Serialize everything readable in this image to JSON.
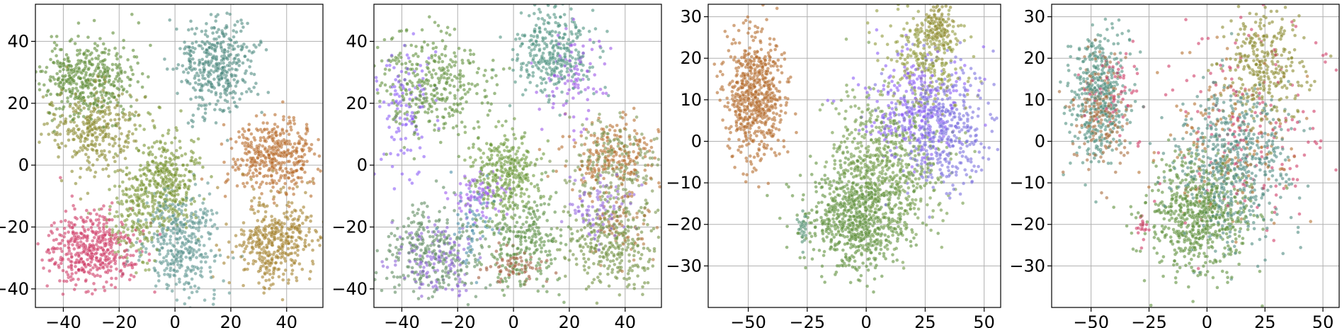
{
  "chart_data": [
    {
      "type": "scatter",
      "title": "",
      "xlabel": "",
      "ylabel": "",
      "xlim": [
        -50,
        53
      ],
      "ylim": [
        -46,
        52
      ],
      "xticks": [
        -40,
        -20,
        0,
        20,
        40
      ],
      "yticks": [
        -40,
        -20,
        0,
        20,
        40
      ],
      "x_tick_labels": [
        "−40",
        "−20",
        "0",
        "20",
        "40"
      ],
      "y_tick_labels": [
        "−40",
        "−20",
        "0",
        "20",
        "40"
      ],
      "grid": true,
      "legend": "none",
      "seed": 11,
      "clusters": [
        {
          "color": "#5b8b33",
          "x": -32,
          "y": 28,
          "sx": 8,
          "sy": 6,
          "n": 430
        },
        {
          "color": "#4e8a80",
          "x": 15,
          "y": 33,
          "sx": 7,
          "sy": 8,
          "n": 420
        },
        {
          "color": "#8a8a2e",
          "x": -30,
          "y": 12,
          "sx": 8,
          "sy": 7,
          "n": 330
        },
        {
          "color": "#b76a2a",
          "x": 36,
          "y": 3,
          "sx": 8,
          "sy": 6,
          "n": 420
        },
        {
          "color": "#77922e",
          "x": -4,
          "y": -5,
          "sx": 6,
          "sy": 8,
          "n": 380
        },
        {
          "color": "#cf3a66",
          "x": -30,
          "y": -27,
          "sx": 8,
          "sy": 6,
          "n": 460
        },
        {
          "color": "#5b9490",
          "x": 2,
          "y": -25,
          "sx": 7,
          "sy": 8,
          "n": 380
        },
        {
          "color": "#a4812c",
          "x": 36,
          "y": -25,
          "sx": 7,
          "sy": 7,
          "n": 420
        },
        {
          "color": "#7d9a3a",
          "x": -14,
          "y": -17,
          "sx": 5,
          "sy": 7,
          "n": 150
        }
      ]
    },
    {
      "type": "scatter",
      "title": "",
      "xlabel": "",
      "ylabel": "",
      "xlim": [
        -50,
        53
      ],
      "ylim": [
        -46,
        52
      ],
      "xticks": [
        -40,
        -20,
        0,
        20,
        40
      ],
      "yticks": [
        -40,
        -20,
        0,
        20,
        40
      ],
      "x_tick_labels": [
        "−40",
        "−20",
        "0",
        "20",
        "40"
      ],
      "y_tick_labels": [
        "−40",
        "−20",
        "0",
        "20",
        "40"
      ],
      "grid": true,
      "legend": "none",
      "seed": 23,
      "clusters": [
        {
          "color": "#5f8f3a",
          "x": -30,
          "y": 25,
          "sx": 10,
          "sy": 9,
          "n": 360
        },
        {
          "color": "#8b5cf6",
          "x": -40,
          "y": 20,
          "sx": 5,
          "sy": 10,
          "n": 120
        },
        {
          "color": "#4f9380",
          "x": 14,
          "y": 36,
          "sx": 7,
          "sy": 7,
          "n": 330
        },
        {
          "color": "#9b55e8",
          "x": 22,
          "y": 28,
          "sx": 6,
          "sy": 8,
          "n": 90
        },
        {
          "color": "#b86e2f",
          "x": 35,
          "y": 3,
          "sx": 9,
          "sy": 6,
          "n": 220
        },
        {
          "color": "#7a9450",
          "x": 36,
          "y": 0,
          "sx": 8,
          "sy": 7,
          "n": 220
        },
        {
          "color": "#6d9a3a",
          "x": -3,
          "y": -3,
          "sx": 6,
          "sy": 7,
          "n": 330
        },
        {
          "color": "#9b59ee",
          "x": -12,
          "y": -10,
          "sx": 5,
          "sy": 4,
          "n": 80
        },
        {
          "color": "#5e8a5f",
          "x": -30,
          "y": -28,
          "sx": 9,
          "sy": 7,
          "n": 300
        },
        {
          "color": "#8e63d8",
          "x": -28,
          "y": -30,
          "sx": 8,
          "sy": 6,
          "n": 140
        },
        {
          "color": "#5c8f45",
          "x": 4,
          "y": -25,
          "sx": 7,
          "sy": 8,
          "n": 260
        },
        {
          "color": "#a05a3a",
          "x": 0,
          "y": -33,
          "sx": 6,
          "sy": 3,
          "n": 70
        },
        {
          "color": "#6f8f3f",
          "x": 36,
          "y": -25,
          "sx": 8,
          "sy": 7,
          "n": 300
        },
        {
          "color": "#9567e0",
          "x": 30,
          "y": -15,
          "sx": 6,
          "sy": 6,
          "n": 90
        },
        {
          "color": "#b0753a",
          "x": 40,
          "y": -20,
          "sx": 6,
          "sy": 5,
          "n": 80
        },
        {
          "color": "#4b8faa",
          "x": -15,
          "y": -20,
          "sx": 4,
          "sy": 7,
          "n": 60
        }
      ]
    },
    {
      "type": "scatter",
      "title": "",
      "xlabel": "",
      "ylabel": "",
      "xlim": [
        -67,
        57
      ],
      "ylim": [
        -40,
        33
      ],
      "xticks": [
        -50,
        -25,
        0,
        25,
        50
      ],
      "yticks": [
        -30,
        -20,
        -10,
        0,
        10,
        20,
        30
      ],
      "x_tick_labels": [
        "−50",
        "−25",
        "0",
        "25",
        "50"
      ],
      "y_tick_labels": [
        "−30",
        "−20",
        "−10",
        "0",
        "10",
        "20",
        "30"
      ],
      "grid": true,
      "legend": "none",
      "seed": 37,
      "clusters": [
        {
          "color": "#b46a2c",
          "x": -47,
          "y": 11,
          "sx": 6,
          "sy": 7.5,
          "n": 650
        },
        {
          "color": "#5e8f3b",
          "x": -5,
          "y": -18,
          "sx": 11,
          "sy": 7,
          "n": 700
        },
        {
          "color": "#6f9a45",
          "x": 10,
          "y": -6,
          "sx": 12,
          "sy": 9,
          "n": 600
        },
        {
          "color": "#7a70dd",
          "x": 32,
          "y": 3,
          "sx": 10,
          "sy": 8,
          "n": 420
        },
        {
          "color": "#8b5cf6",
          "x": 20,
          "y": 8,
          "sx": 12,
          "sy": 6,
          "n": 260
        },
        {
          "color": "#8f9a38",
          "x": 25,
          "y": 20,
          "sx": 9,
          "sy": 6,
          "n": 260
        },
        {
          "color": "#8f8a2e",
          "x": 30,
          "y": 27,
          "sx": 4,
          "sy": 2.5,
          "n": 120
        },
        {
          "color": "#4c8e6f",
          "x": -27,
          "y": -21,
          "sx": 1.2,
          "sy": 2,
          "n": 25
        }
      ]
    },
    {
      "type": "scatter",
      "title": "",
      "xlabel": "",
      "ylabel": "",
      "xlim": [
        -67,
        57
      ],
      "ylim": [
        -40,
        33
      ],
      "xticks": [
        -50,
        -25,
        0,
        25,
        50
      ],
      "yticks": [
        -30,
        -20,
        -10,
        0,
        10,
        20,
        30
      ],
      "x_tick_labels": [
        "−50",
        "−25",
        "0",
        "25",
        "50"
      ],
      "y_tick_labels": [
        "−30",
        "−20",
        "−10",
        "0",
        "10",
        "20",
        "30"
      ],
      "grid": true,
      "legend": "none",
      "seed": 53,
      "clusters": [
        {
          "color": "#4f8f7f",
          "x": -47,
          "y": 11,
          "sx": 6,
          "sy": 7.5,
          "n": 450
        },
        {
          "color": "#a86a3a",
          "x": -45,
          "y": 8,
          "sx": 6,
          "sy": 7,
          "n": 180
        },
        {
          "color": "#cf3a66",
          "x": -40,
          "y": 12,
          "sx": 5,
          "sy": 5,
          "n": 60
        },
        {
          "color": "#5e8f3b",
          "x": -3,
          "y": -18,
          "sx": 11,
          "sy": 7,
          "n": 650
        },
        {
          "color": "#4e8a80",
          "x": 12,
          "y": -5,
          "sx": 12,
          "sy": 9,
          "n": 550
        },
        {
          "color": "#8a8a2e",
          "x": 25,
          "y": 18,
          "sx": 9,
          "sy": 7,
          "n": 300
        },
        {
          "color": "#cf3a66",
          "x": 20,
          "y": 5,
          "sx": 18,
          "sy": 13,
          "n": 170
        },
        {
          "color": "#b4702f",
          "x": 10,
          "y": 0,
          "sx": 15,
          "sy": 10,
          "n": 150
        },
        {
          "color": "#cf3a66",
          "x": -28,
          "y": -21,
          "sx": 1.2,
          "sy": 2,
          "n": 20
        }
      ]
    }
  ]
}
